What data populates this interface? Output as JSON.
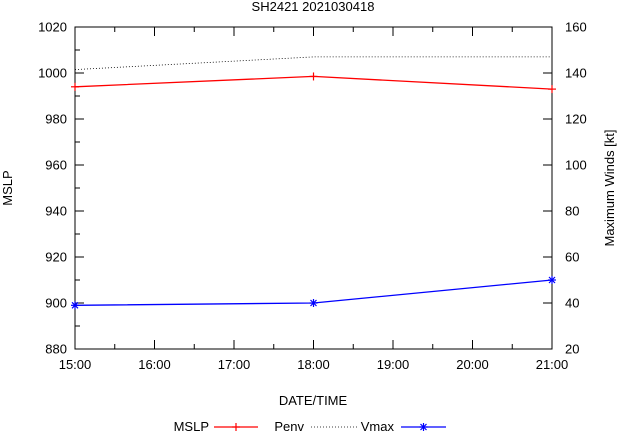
{
  "chart_data": {
    "type": "line",
    "title": "SH2421 2021030418",
    "xlabel": "DATE/TIME",
    "ylabel": "MSLP",
    "y2label": "Maximum Winds [kt]",
    "x_ticks": [
      "15:00",
      "16:00",
      "17:00",
      "18:00",
      "19:00",
      "20:00",
      "21:00"
    ],
    "x_hours": [
      15,
      16,
      17,
      18,
      19,
      20,
      21
    ],
    "xlim": [
      15,
      21
    ],
    "ylim": [
      880,
      1020
    ],
    "y_ticks": [
      880,
      900,
      920,
      940,
      960,
      980,
      1000,
      1020
    ],
    "y2lim": [
      20,
      160
    ],
    "y2_ticks": [
      20,
      40,
      60,
      80,
      100,
      120,
      140,
      160
    ],
    "grid": false,
    "legend_position": "bottom",
    "series": [
      {
        "name": "MSLP",
        "axis": "left",
        "color": "#ff0000",
        "style": "line-plus",
        "x": [
          15,
          18,
          21
        ],
        "values": [
          994,
          998.5,
          993
        ]
      },
      {
        "name": "Penv",
        "axis": "left",
        "color": "#000000",
        "style": "dotted",
        "x": [
          15,
          18,
          21
        ],
        "values": [
          1001.5,
          1007,
          1007
        ]
      },
      {
        "name": "Vmax",
        "axis": "right",
        "color": "#0000ff",
        "style": "line-star",
        "x": [
          15,
          18,
          21
        ],
        "values": [
          39,
          40,
          50
        ]
      }
    ]
  }
}
